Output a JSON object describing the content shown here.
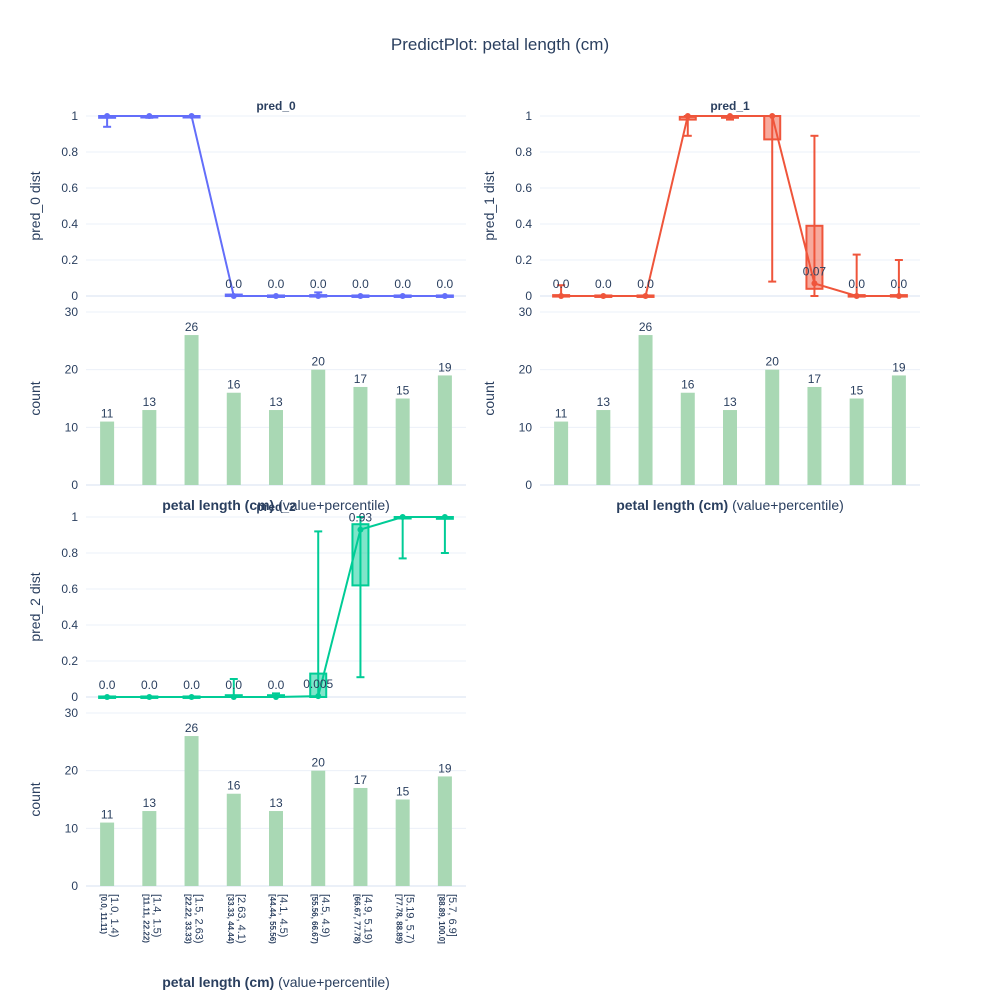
{
  "chart_data": {
    "type": "box-line-bar",
    "title": "PredictPlot: petal length (cm)",
    "categories": [
      "[1.0, 1.4)",
      "[1.4, 1.5)",
      "[1.5, 2.63)",
      "[2.63, 4.1)",
      "[4.1, 4.5)",
      "[4.5, 4.9)",
      "[4.9, 5.19)",
      "[5.19, 5.7)",
      "[5.7, 6.9]"
    ],
    "percentiles": [
      "[0.0, 11.11)",
      "[11.11, 22.22)",
      "[22.22, 33.33)",
      "[33.33, 44.44)",
      "[44.44, 55.56)",
      "[55.56, 66.67)",
      "[66.67, 77.78)",
      "[77.78, 88.89)",
      "[88.89, 100.0]"
    ],
    "xlabel_bold": "petal length (cm)",
    "xlabel_rest": "(value+percentile)",
    "count_ylabel": "count",
    "count_ylim": [
      0,
      30
    ],
    "count_yticks": [
      0,
      10,
      20,
      30
    ],
    "counts": [
      11,
      13,
      26,
      16,
      13,
      20,
      17,
      15,
      19
    ],
    "dist_ylim": [
      0,
      1
    ],
    "dist_yticks": [
      "0",
      "0.2",
      "0.4",
      "0.6",
      "0.8",
      "1"
    ],
    "panels": [
      {
        "name": "pred_0",
        "ylabel": "pred_0 dist",
        "color": "#636efa",
        "fill": "rgba(99,110,250,0.5)",
        "medians": [
          1.0,
          1.0,
          1.0,
          0.0,
          0.0,
          0.0,
          0.0,
          0.0,
          0.0
        ],
        "labels": [
          "",
          "",
          "",
          "0.0",
          "0.0",
          "0.0",
          "0.0",
          "0.0",
          "0.0"
        ],
        "boxes": [
          {
            "lo": 0.94,
            "q1": 0.99,
            "q3": 1.0,
            "hi": 1.0
          },
          {
            "lo": 0.99,
            "q1": 0.995,
            "q3": 1.0,
            "hi": 1.0
          },
          {
            "lo": 1.0,
            "q1": 1.0,
            "q3": 1.0,
            "hi": 1.0
          },
          {
            "lo": 0.0,
            "q1": 0.0,
            "q3": 0.008,
            "hi": 0.008
          },
          {
            "lo": 0.0,
            "q1": 0.0,
            "q3": 0.003,
            "hi": 0.003
          },
          {
            "lo": 0.0,
            "q1": 0.0,
            "q3": 0.005,
            "hi": 0.02
          },
          {
            "lo": 0.0,
            "q1": 0.0,
            "q3": 0.003,
            "hi": 0.003
          },
          {
            "lo": 0.0,
            "q1": 0.0,
            "q3": 0.003,
            "hi": 0.003
          },
          {
            "lo": 0.0,
            "q1": 0.0,
            "q3": 0.003,
            "hi": 0.003
          }
        ]
      },
      {
        "name": "pred_1",
        "ylabel": "pred_1 dist",
        "color": "#ef553b",
        "fill": "rgba(239,85,59,0.5)",
        "medians": [
          0.0,
          0.0,
          0.0,
          1.0,
          1.0,
          1.0,
          0.07,
          0.0,
          0.0
        ],
        "labels": [
          "0.0",
          "0.0",
          "0.0",
          "",
          "",
          "",
          "0.07",
          "0.0",
          "0.0"
        ],
        "boxes": [
          {
            "lo": 0.0,
            "q1": 0.0,
            "q3": 0.005,
            "hi": 0.06
          },
          {
            "lo": 0.0,
            "q1": 0.0,
            "q3": 0.003,
            "hi": 0.003
          },
          {
            "lo": 0.0,
            "q1": 0.0,
            "q3": 0.003,
            "hi": 0.003
          },
          {
            "lo": 0.89,
            "q1": 0.98,
            "q3": 0.995,
            "hi": 1.0
          },
          {
            "lo": 0.98,
            "q1": 0.99,
            "q3": 1.0,
            "hi": 1.0
          },
          {
            "lo": 0.08,
            "q1": 0.87,
            "q3": 1.0,
            "hi": 1.0
          },
          {
            "lo": 0.0,
            "q1": 0.04,
            "q3": 0.39,
            "hi": 0.89
          },
          {
            "lo": 0.0,
            "q1": 0.0,
            "q3": 0.005,
            "hi": 0.23
          },
          {
            "lo": 0.0,
            "q1": 0.0,
            "q3": 0.005,
            "hi": 0.2
          }
        ]
      },
      {
        "name": "pred_2",
        "ylabel": "pred_2 dist",
        "color": "#00cc96",
        "fill": "rgba(0,204,150,0.5)",
        "medians": [
          0.0,
          0.0,
          0.0,
          0.0,
          0.0,
          0.005,
          0.93,
          1.0,
          1.0
        ],
        "labels": [
          "0.0",
          "0.0",
          "0.0",
          "0.0",
          "0.0",
          "0.005",
          "0.93",
          "",
          ""
        ],
        "boxes": [
          {
            "lo": 0.0,
            "q1": 0.0,
            "q3": 0.003,
            "hi": 0.003
          },
          {
            "lo": 0.0,
            "q1": 0.0,
            "q3": 0.003,
            "hi": 0.003
          },
          {
            "lo": 0.0,
            "q1": 0.0,
            "q3": 0.003,
            "hi": 0.003
          },
          {
            "lo": 0.0,
            "q1": 0.0,
            "q3": 0.01,
            "hi": 0.1
          },
          {
            "lo": 0.0,
            "q1": 0.0,
            "q3": 0.01,
            "hi": 0.02
          },
          {
            "lo": 0.0,
            "q1": 0.0,
            "q3": 0.13,
            "hi": 0.92
          },
          {
            "lo": 0.11,
            "q1": 0.62,
            "q3": 0.96,
            "hi": 1.0
          },
          {
            "lo": 0.77,
            "q1": 0.995,
            "q3": 1.0,
            "hi": 1.0
          },
          {
            "lo": 0.8,
            "q1": 0.99,
            "q3": 1.0,
            "hi": 1.0
          }
        ]
      }
    ],
    "bar_color": "#a9d8b4"
  }
}
